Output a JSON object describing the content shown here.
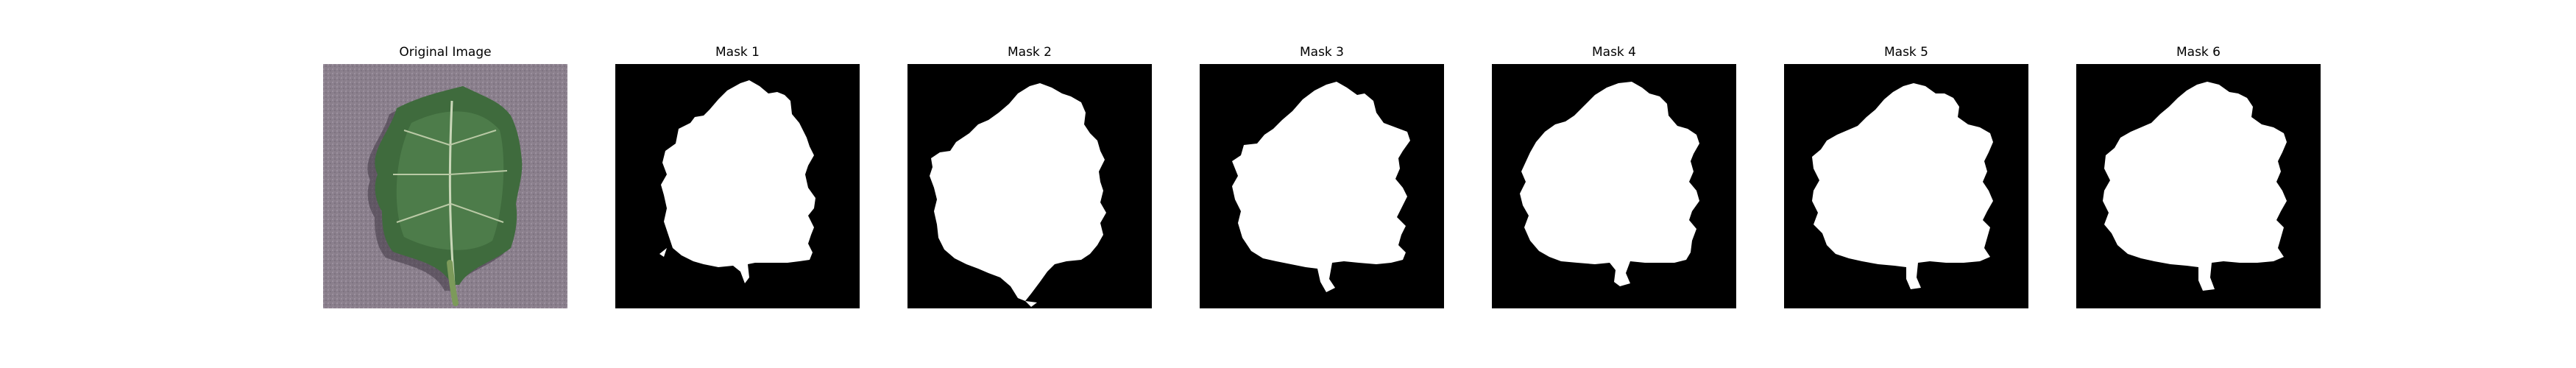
{
  "figure": {
    "background_color": "#ffffff",
    "mask_background_color": "#000000",
    "mask_foreground_color": "#ffffff",
    "panels": [
      {
        "title": "Original Image",
        "kind": "photo"
      },
      {
        "title": "Mask 1",
        "kind": "mask"
      },
      {
        "title": "Mask 2",
        "kind": "mask"
      },
      {
        "title": "Mask 3",
        "kind": "mask"
      },
      {
        "title": "Mask 4",
        "kind": "mask"
      },
      {
        "title": "Mask 5",
        "kind": "mask"
      },
      {
        "title": "Mask 6",
        "kind": "mask"
      }
    ]
  }
}
